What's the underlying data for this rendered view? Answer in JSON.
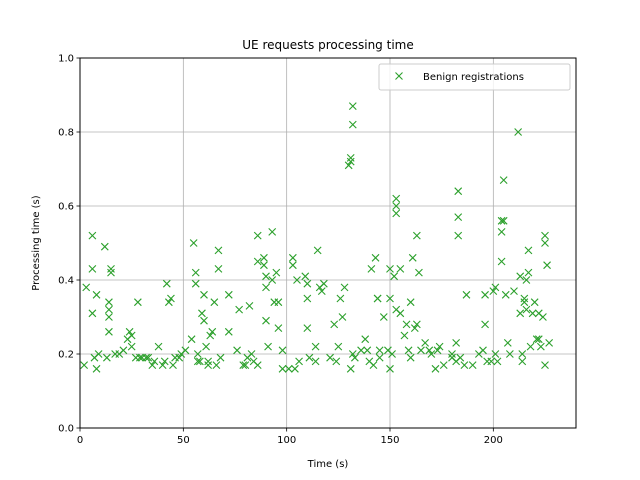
{
  "chart_data": {
    "type": "scatter",
    "title": "UE requests processing time",
    "xlabel": "Time (s)",
    "ylabel": "Processing time (s)",
    "xlim": [
      0,
      240
    ],
    "ylim": [
      0,
      1.0
    ],
    "xticks": [
      0,
      50,
      100,
      150,
      200
    ],
    "yticks": [
      0.0,
      0.2,
      0.4,
      0.6,
      0.8,
      1.0
    ],
    "ytick_labels": [
      "0.0",
      "0.2",
      "0.4",
      "0.6",
      "0.8",
      "1.0"
    ],
    "grid": true,
    "legend_position": "top-right",
    "marker": "x",
    "series": [
      {
        "name": "Benign registrations",
        "color": "#2ca02c",
        "points": [
          [
            2,
            0.17
          ],
          [
            3,
            0.38
          ],
          [
            6,
            0.52
          ],
          [
            6,
            0.43
          ],
          [
            6,
            0.31
          ],
          [
            7,
            0.19
          ],
          [
            8,
            0.36
          ],
          [
            8,
            0.16
          ],
          [
            9,
            0.2
          ],
          [
            12,
            0.49
          ],
          [
            13,
            0.19
          ],
          [
            14,
            0.34
          ],
          [
            14,
            0.32
          ],
          [
            14,
            0.3
          ],
          [
            14,
            0.26
          ],
          [
            15,
            0.43
          ],
          [
            15,
            0.42
          ],
          [
            17,
            0.2
          ],
          [
            19,
            0.2
          ],
          [
            21,
            0.21
          ],
          [
            23,
            0.24
          ],
          [
            24,
            0.26
          ],
          [
            25,
            0.25
          ],
          [
            25,
            0.22
          ],
          [
            27,
            0.19
          ],
          [
            28,
            0.34
          ],
          [
            29,
            0.19
          ],
          [
            30,
            0.19
          ],
          [
            32,
            0.19
          ],
          [
            33,
            0.19
          ],
          [
            35,
            0.17
          ],
          [
            36,
            0.18
          ],
          [
            38,
            0.22
          ],
          [
            40,
            0.17
          ],
          [
            41,
            0.18
          ],
          [
            42,
            0.39
          ],
          [
            43,
            0.34
          ],
          [
            44,
            0.35
          ],
          [
            45,
            0.17
          ],
          [
            46,
            0.19
          ],
          [
            48,
            0.19
          ],
          [
            49,
            0.2
          ],
          [
            51,
            0.21
          ],
          [
            54,
            0.24
          ],
          [
            55,
            0.5
          ],
          [
            56,
            0.42
          ],
          [
            56,
            0.39
          ],
          [
            57,
            0.2
          ],
          [
            57,
            0.18
          ],
          [
            58,
            0.18
          ],
          [
            59,
            0.31
          ],
          [
            60,
            0.36
          ],
          [
            60,
            0.29
          ],
          [
            61,
            0.22
          ],
          [
            62,
            0.18
          ],
          [
            62,
            0.17
          ],
          [
            63,
            0.25
          ],
          [
            64,
            0.26
          ],
          [
            65,
            0.34
          ],
          [
            66,
            0.17
          ],
          [
            67,
            0.48
          ],
          [
            67,
            0.43
          ],
          [
            68,
            0.19
          ],
          [
            72,
            0.36
          ],
          [
            72,
            0.26
          ],
          [
            76,
            0.21
          ],
          [
            77,
            0.32
          ],
          [
            79,
            0.17
          ],
          [
            80,
            0.17
          ],
          [
            81,
            0.19
          ],
          [
            82,
            0.33
          ],
          [
            83,
            0.2
          ],
          [
            84,
            0.18
          ],
          [
            86,
            0.52
          ],
          [
            86,
            0.45
          ],
          [
            86,
            0.17
          ],
          [
            89,
            0.46
          ],
          [
            89,
            0.44
          ],
          [
            90,
            0.41
          ],
          [
            90,
            0.38
          ],
          [
            90,
            0.29
          ],
          [
            91,
            0.22
          ],
          [
            93,
            0.4
          ],
          [
            93,
            0.53
          ],
          [
            94,
            0.34
          ],
          [
            95,
            0.42
          ],
          [
            96,
            0.34
          ],
          [
            96,
            0.27
          ],
          [
            98,
            0.21
          ],
          [
            98,
            0.16
          ],
          [
            101,
            0.16
          ],
          [
            103,
            0.46
          ],
          [
            103,
            0.44
          ],
          [
            104,
            0.16
          ],
          [
            105,
            0.4
          ],
          [
            106,
            0.18
          ],
          [
            109,
            0.41
          ],
          [
            110,
            0.39
          ],
          [
            110,
            0.35
          ],
          [
            110,
            0.27
          ],
          [
            111,
            0.19
          ],
          [
            114,
            0.22
          ],
          [
            114,
            0.18
          ],
          [
            115,
            0.48
          ],
          [
            116,
            0.38
          ],
          [
            117,
            0.37
          ],
          [
            118,
            0.39
          ],
          [
            121,
            0.19
          ],
          [
            123,
            0.28
          ],
          [
            124,
            0.18
          ],
          [
            125,
            0.22
          ],
          [
            126,
            0.35
          ],
          [
            127,
            0.3
          ],
          [
            128,
            0.38
          ],
          [
            130,
            0.71
          ],
          [
            131,
            0.73
          ],
          [
            131,
            0.72
          ],
          [
            131,
            0.16
          ],
          [
            132,
            0.2
          ],
          [
            132,
            0.87
          ],
          [
            132,
            0.82
          ],
          [
            133,
            0.19
          ],
          [
            136,
            0.21
          ],
          [
            138,
            0.24
          ],
          [
            139,
            0.21
          ],
          [
            140,
            0.18
          ],
          [
            141,
            0.43
          ],
          [
            142,
            0.17
          ],
          [
            143,
            0.46
          ],
          [
            144,
            0.35
          ],
          [
            144,
            0.35
          ],
          [
            145,
            0.21
          ],
          [
            145,
            0.19
          ],
          [
            147,
            0.3
          ],
          [
            149,
            0.21
          ],
          [
            150,
            0.43
          ],
          [
            150,
            0.35
          ],
          [
            150,
            0.16
          ],
          [
            151,
            0.2
          ],
          [
            152,
            0.41
          ],
          [
            153,
            0.62
          ],
          [
            153,
            0.6
          ],
          [
            153,
            0.58
          ],
          [
            153,
            0.32
          ],
          [
            155,
            0.43
          ],
          [
            155,
            0.31
          ],
          [
            157,
            0.25
          ],
          [
            158,
            0.28
          ],
          [
            159,
            0.21
          ],
          [
            160,
            0.19
          ],
          [
            160,
            0.34
          ],
          [
            161,
            0.46
          ],
          [
            162,
            0.27
          ],
          [
            163,
            0.28
          ],
          [
            163,
            0.52
          ],
          [
            164,
            0.42
          ],
          [
            165,
            0.21
          ],
          [
            167,
            0.23
          ],
          [
            169,
            0.21
          ],
          [
            170,
            0.2
          ],
          [
            172,
            0.16
          ],
          [
            173,
            0.21
          ],
          [
            174,
            0.22
          ],
          [
            176,
            0.17
          ],
          [
            180,
            0.2
          ],
          [
            180,
            0.19
          ],
          [
            182,
            0.23
          ],
          [
            182,
            0.18
          ],
          [
            183,
            0.57
          ],
          [
            183,
            0.52
          ],
          [
            183,
            0.64
          ],
          [
            184,
            0.19
          ],
          [
            186,
            0.17
          ],
          [
            187,
            0.36
          ],
          [
            190,
            0.17
          ],
          [
            193,
            0.2
          ],
          [
            195,
            0.21
          ],
          [
            196,
            0.36
          ],
          [
            196,
            0.28
          ],
          [
            197,
            0.18
          ],
          [
            199,
            0.18
          ],
          [
            200,
            0.37
          ],
          [
            201,
            0.38
          ],
          [
            201,
            0.2
          ],
          [
            202,
            0.18
          ],
          [
            204,
            0.56
          ],
          [
            204,
            0.53
          ],
          [
            204,
            0.45
          ],
          [
            205,
            0.56
          ],
          [
            205,
            0.67
          ],
          [
            206,
            0.36
          ],
          [
            207,
            0.23
          ],
          [
            208,
            0.2
          ],
          [
            210,
            0.37
          ],
          [
            212,
            0.8
          ],
          [
            213,
            0.41
          ],
          [
            213,
            0.31
          ],
          [
            214,
            0.18
          ],
          [
            214,
            0.2
          ],
          [
            215,
            0.35
          ],
          [
            215,
            0.34
          ],
          [
            216,
            0.32
          ],
          [
            216,
            0.4
          ],
          [
            217,
            0.48
          ],
          [
            217,
            0.42
          ],
          [
            218,
            0.22
          ],
          [
            219,
            0.31
          ],
          [
            220,
            0.34
          ],
          [
            221,
            0.24
          ],
          [
            222,
            0.31
          ],
          [
            222,
            0.24
          ],
          [
            223,
            0.22
          ],
          [
            224,
            0.3
          ],
          [
            225,
            0.17
          ],
          [
            225,
            0.52
          ],
          [
            225,
            0.5
          ],
          [
            226,
            0.44
          ],
          [
            227,
            0.23
          ]
        ]
      }
    ]
  }
}
